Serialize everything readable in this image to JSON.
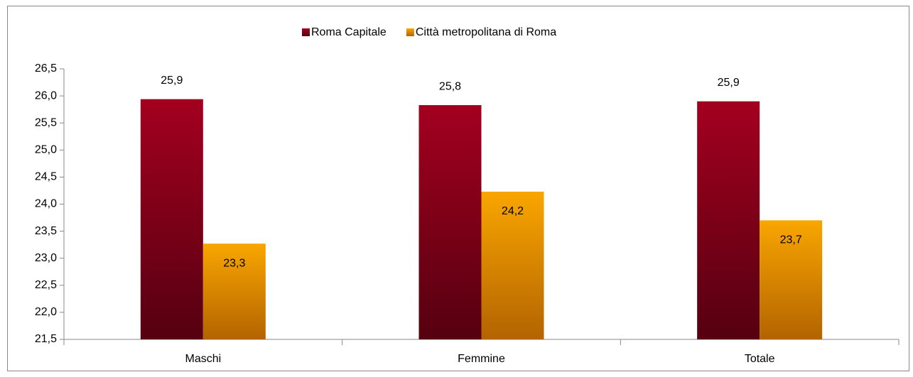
{
  "chart_data": {
    "type": "bar",
    "categories": [
      "Maschi",
      "Femmine",
      "Totale"
    ],
    "series": [
      {
        "name": "Roma Capitale",
        "color": "#8b0018",
        "values": [
          25.94,
          25.83,
          25.9
        ],
        "value_labels": [
          "25,9",
          "25,8",
          "25,9"
        ]
      },
      {
        "name": "Città metropolitana di Roma",
        "color": "#f39c00",
        "values": [
          23.27,
          24.23,
          23.7
        ],
        "value_labels": [
          "23,3",
          "24,2",
          "23,7"
        ]
      }
    ],
    "ylim": [
      21.5,
      26.5
    ],
    "yticks": [
      {
        "value": 21.5,
        "label": "21,5"
      },
      {
        "value": 22,
        "label": "22,0"
      },
      {
        "value": 22.5,
        "label": "22,5"
      },
      {
        "value": 23,
        "label": "23,0"
      },
      {
        "value": 23.5,
        "label": "23,5"
      },
      {
        "value": 24,
        "label": "24,0"
      },
      {
        "value": 24.5,
        "label": "24,5"
      },
      {
        "value": 25,
        "label": "25,0"
      },
      {
        "value": 25.5,
        "label": "25,5"
      },
      {
        "value": 26,
        "label": "26,0"
      },
      {
        "value": 26.5,
        "label": "26,5"
      }
    ],
    "legend": "top",
    "grid": false
  }
}
